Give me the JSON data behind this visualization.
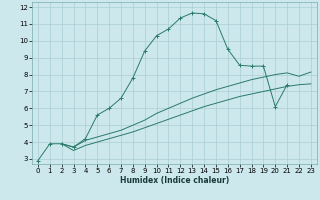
{
  "title": "",
  "xlabel": "Humidex (Indice chaleur)",
  "ylabel": "",
  "bg_color": "#cce8ec",
  "grid_color": "#aacdd4",
  "line_color": "#2a7a6a",
  "xlim": [
    -0.5,
    23.5
  ],
  "ylim": [
    2.7,
    12.3
  ],
  "xticks": [
    0,
    1,
    2,
    3,
    4,
    5,
    6,
    7,
    8,
    9,
    10,
    11,
    12,
    13,
    14,
    15,
    16,
    17,
    18,
    19,
    20,
    21,
    22,
    23
  ],
  "yticks": [
    3,
    4,
    5,
    6,
    7,
    8,
    9,
    10,
    11,
    12
  ],
  "series": [
    {
      "x": [
        0,
        1,
        2,
        3,
        4,
        5,
        6,
        7,
        8,
        9,
        10,
        11,
        12,
        13,
        14,
        15,
        16,
        17,
        18,
        19,
        20,
        21
      ],
      "y": [
        2.9,
        3.9,
        3.9,
        3.7,
        4.2,
        5.6,
        6.0,
        6.6,
        7.8,
        9.4,
        10.3,
        10.7,
        11.35,
        11.65,
        11.6,
        11.2,
        9.5,
        8.55,
        8.5,
        8.5,
        6.1,
        7.4
      ],
      "marker": "+"
    },
    {
      "x": [
        2,
        3,
        4,
        5,
        6,
        7,
        8,
        9,
        10,
        11,
        12,
        13,
        14,
        15,
        16,
        17,
        18,
        19,
        20,
        21,
        22,
        23
      ],
      "y": [
        3.9,
        3.7,
        4.1,
        4.3,
        4.5,
        4.7,
        5.0,
        5.3,
        5.7,
        6.0,
        6.3,
        6.6,
        6.85,
        7.1,
        7.3,
        7.5,
        7.7,
        7.85,
        8.0,
        8.1,
        7.9,
        8.15
      ],
      "marker": null
    },
    {
      "x": [
        2,
        3,
        4,
        5,
        6,
        7,
        8,
        9,
        10,
        11,
        12,
        13,
        14,
        15,
        16,
        17,
        18,
        19,
        20,
        21,
        22,
        23
      ],
      "y": [
        3.9,
        3.5,
        3.8,
        4.0,
        4.2,
        4.4,
        4.6,
        4.85,
        5.1,
        5.35,
        5.6,
        5.85,
        6.1,
        6.3,
        6.5,
        6.7,
        6.85,
        7.0,
        7.15,
        7.3,
        7.4,
        7.45
      ],
      "marker": null
    }
  ],
  "xlabel_fontsize": 5.5,
  "xlabel_fontweight": "bold",
  "tick_fontsize": 5.0,
  "linewidth": 0.7
}
